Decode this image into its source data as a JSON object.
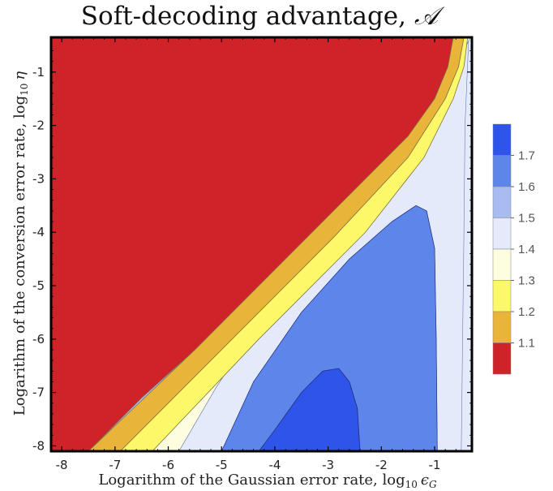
{
  "chart_data": {
    "type": "contour",
    "title": "Soft-decoding advantage, ",
    "title_symbol": "𝒜",
    "xlabel": "Logarithm of the Gaussian error rate, log",
    "xlabel_sub": "10",
    "xlabel_sym": "ϵ",
    "xlabel_symsub": "G",
    "ylabel": "Logarithm of the conversion error rate, log",
    "ylabel_sub": "10",
    "ylabel_sym": "η",
    "xlim": [
      -8.2,
      -0.3
    ],
    "ylim": [
      -8.1,
      -0.35
    ],
    "x_ticks": [
      -8,
      -7,
      -6,
      -5,
      -4,
      -3,
      -2,
      -1
    ],
    "y_ticks": [
      -8,
      -7,
      -6,
      -5,
      -4,
      -3,
      -2,
      -1
    ],
    "x_tick_labels": [
      "-8",
      "-7",
      "-6",
      "-5",
      "-4",
      "-3",
      "-2",
      "-1"
    ],
    "y_tick_labels": [
      "-8",
      "-7",
      "-6",
      "-5",
      "-4",
      "-3",
      "-2",
      "-1"
    ],
    "levels": [
      {
        "min": 1.0,
        "max": 1.1,
        "color": "#cf232a"
      },
      {
        "min": 1.1,
        "max": 1.2,
        "color": "#e9b43a"
      },
      {
        "min": 1.2,
        "max": 1.3,
        "color": "#fbf86a"
      },
      {
        "min": 1.3,
        "max": 1.4,
        "color": "#fdfee0"
      },
      {
        "min": 1.4,
        "max": 1.5,
        "color": "#e5eafb"
      },
      {
        "min": 1.5,
        "max": 1.6,
        "color": "#a8bcf2"
      },
      {
        "min": 1.6,
        "max": 1.7,
        "color": "#5e85ea"
      },
      {
        "min": 1.7,
        "max": 1.8,
        "color": "#2f54e9"
      }
    ],
    "colorbar_ticks": [
      "1.1",
      "1.2",
      "1.3",
      "1.4",
      "1.5",
      "1.6",
      "1.7"
    ],
    "regions": [
      {
        "level": "1.0-1.1",
        "boundary": [
          [
            -8.2,
            -8.1
          ],
          [
            -7.5,
            -8.1
          ],
          [
            -6.5,
            -7.1
          ],
          [
            -5.5,
            -6.2
          ],
          [
            -4.5,
            -5.2
          ],
          [
            -3.5,
            -4.2
          ],
          [
            -2.5,
            -3.2
          ],
          [
            -1.5,
            -2.2
          ],
          [
            -1.0,
            -1.5
          ],
          [
            -0.75,
            -0.9
          ],
          [
            -0.65,
            -0.35
          ],
          [
            -8.2,
            -0.35
          ]
        ]
      },
      {
        "level": "1.1-1.2",
        "boundary": [
          [
            -7.5,
            -8.1
          ],
          [
            -6.9,
            -8.1
          ],
          [
            -4.9,
            -6.1
          ],
          [
            -2.9,
            -4.1
          ],
          [
            -1.5,
            -2.6
          ],
          [
            -0.8,
            -1.5
          ],
          [
            -0.55,
            -0.9
          ],
          [
            -0.45,
            -0.35
          ],
          [
            -0.65,
            -0.35
          ],
          [
            -0.75,
            -0.9
          ],
          [
            -1.0,
            -1.5
          ],
          [
            -1.5,
            -2.2
          ],
          [
            -3.5,
            -4.2
          ],
          [
            -5.5,
            -6.2
          ],
          [
            -7.5,
            -8.1
          ]
        ]
      },
      {
        "level": "1.2-1.3",
        "boundary": [
          [
            -6.9,
            -8.1
          ],
          [
            -6.3,
            -8.1
          ],
          [
            -4.3,
            -6.0
          ],
          [
            -2.3,
            -4.0
          ],
          [
            -1.2,
            -2.6
          ],
          [
            -0.65,
            -1.5
          ],
          [
            -0.45,
            -0.9
          ],
          [
            -0.38,
            -0.35
          ],
          [
            -0.45,
            -0.35
          ],
          [
            -0.55,
            -0.9
          ],
          [
            -0.8,
            -1.5
          ],
          [
            -1.5,
            -2.6
          ],
          [
            -2.9,
            -4.1
          ],
          [
            -4.9,
            -6.1
          ],
          [
            -6.9,
            -8.1
          ]
        ]
      },
      {
        "level": "1.7-1.8",
        "boundary": [
          [
            -4.3,
            -8.1
          ],
          [
            -2.4,
            -8.1
          ],
          [
            -2.45,
            -7.3
          ],
          [
            -2.6,
            -6.8
          ],
          [
            -2.8,
            -6.55
          ],
          [
            -3.1,
            -6.6
          ],
          [
            -3.5,
            -7.0
          ],
          [
            -4.0,
            -7.7
          ]
        ]
      },
      {
        "level": "1.6-1.7",
        "boundary": [
          [
            -5.0,
            -8.1
          ],
          [
            -0.95,
            -8.1
          ],
          [
            -0.97,
            -6.0
          ],
          [
            -1.0,
            -4.3
          ],
          [
            -1.15,
            -3.6
          ],
          [
            -1.35,
            -3.5
          ],
          [
            -1.8,
            -3.8
          ],
          [
            -2.6,
            -4.5
          ],
          [
            -3.5,
            -5.5
          ],
          [
            -4.4,
            -6.8
          ]
        ]
      }
    ]
  }
}
